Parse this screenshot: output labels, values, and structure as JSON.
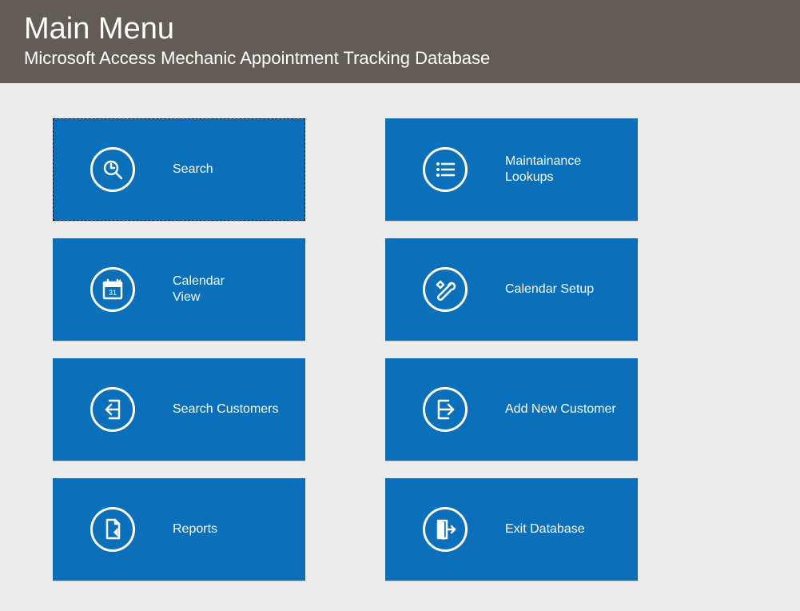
{
  "header": {
    "title": "Main Menu",
    "subtitle": "Microsoft Access Mechanic Appointment Tracking Database"
  },
  "colors": {
    "header_bg": "#635c55",
    "page_bg": "#ececec",
    "tile_bg": "#0b6fb9",
    "tile_fg": "#ffffff"
  },
  "tiles": [
    {
      "id": "search",
      "label": "Search",
      "icon": "search",
      "focused": true
    },
    {
      "id": "maint-lookups",
      "label": "Maintainance\nLookups",
      "icon": "list",
      "focused": false
    },
    {
      "id": "calendar-view",
      "label": "Calendar\nView",
      "icon": "calendar",
      "focused": false
    },
    {
      "id": "calendar-setup",
      "label": "Calendar Setup",
      "icon": "tools",
      "focused": false
    },
    {
      "id": "search-customers",
      "label": "Search Customers",
      "icon": "arrow-in",
      "focused": false
    },
    {
      "id": "add-new-customer",
      "label": "Add New Customer",
      "icon": "arrow-out",
      "focused": false
    },
    {
      "id": "reports",
      "label": "Reports",
      "icon": "doc-edit",
      "focused": false
    },
    {
      "id": "exit-database",
      "label": "Exit Database",
      "icon": "exit",
      "focused": false
    }
  ]
}
